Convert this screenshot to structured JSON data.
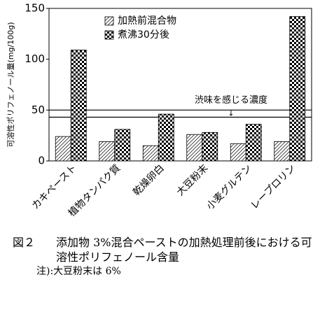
{
  "chart_data": {
    "type": "bar",
    "ylabel": "可溶性ポリフェノール量(mg/100g)",
    "categories": [
      "カキペースト",
      "植物タンパク質",
      "乾燥卵白",
      "大豆粉末",
      "小麦グルテン",
      "レープロリン"
    ],
    "series": [
      {
        "name": "加熱前混合物",
        "color": "#000000",
        "pattern": "hatch",
        "values": [
          24,
          19,
          15,
          26,
          17,
          19
        ]
      },
      {
        "name": "煮沸30分後",
        "color": "#000000",
        "pattern": "checker",
        "values": [
          109,
          31,
          46,
          28,
          36,
          142
        ]
      }
    ],
    "ylim": [
      0,
      150
    ],
    "yticks": [
      0,
      50,
      100,
      150
    ],
    "hlines": [
      50,
      43
    ],
    "annotation": "渋味を感じる濃度",
    "annotation_arrow": "↓",
    "legend": "upper left",
    "caption": {
      "figure": "図２",
      "text": "添加物 3%混合ペーストの加熱処理前後における可溶性ポリフェノール含量",
      "note": "注):大豆粉末は 6%"
    }
  }
}
